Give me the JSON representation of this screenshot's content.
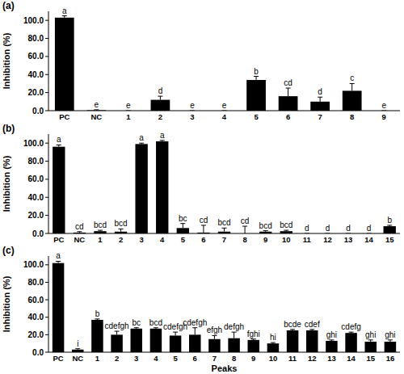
{
  "chart_data": [
    {
      "type": "bar",
      "title": "(a)",
      "y_label": "Inhibition (%)",
      "color": "#000000",
      "grid": false,
      "categories": [
        "PC",
        "NC",
        "1",
        "2",
        "3",
        "4",
        "5",
        "6",
        "7",
        "8",
        "9"
      ],
      "values": [
        103,
        0.5,
        0,
        12,
        0,
        0,
        34,
        16,
        10,
        22,
        0
      ],
      "errors": [
        2,
        0.5,
        0,
        4,
        0,
        0,
        4,
        9,
        5,
        8,
        0
      ],
      "annotations": [
        "a",
        "e",
        "e",
        "d",
        "e",
        "e",
        "b",
        "cd",
        "d",
        "c",
        "e"
      ],
      "ylim": [
        0,
        110
      ],
      "yticks": [
        {
          "value": 0,
          "label": "0.0"
        },
        {
          "value": 20,
          "label": "20.0"
        },
        {
          "value": 40,
          "label": "40.0"
        },
        {
          "value": 60,
          "label": "60.0"
        },
        {
          "value": 80,
          "label": "80.0"
        },
        {
          "value": 100,
          "label": "100.0"
        }
      ]
    },
    {
      "type": "bar",
      "title": "(b)",
      "y_label": "Inhibition (%)",
      "color": "#000000",
      "grid": false,
      "categories": [
        "PC",
        "NC",
        "1",
        "2",
        "3",
        "4",
        "5",
        "6",
        "7",
        "8",
        "9",
        "10",
        "11",
        "12",
        "13",
        "14",
        "15"
      ],
      "values": [
        96,
        1,
        2.5,
        2,
        99,
        102,
        6,
        1,
        2,
        0,
        2,
        2.5,
        0,
        0,
        0,
        0,
        8
      ],
      "errors": [
        2,
        1,
        1,
        3,
        1,
        1,
        5,
        8,
        4,
        8,
        1,
        1,
        0,
        0,
        0,
        0,
        1
      ],
      "annotations": [
        "a",
        "cd",
        "bcd",
        "bcd",
        "a",
        "a",
        "bc",
        "cd",
        "bcd",
        "cd",
        "bcd",
        "bcd",
        "d",
        "d",
        "d",
        "d",
        "b"
      ],
      "ylim": [
        0,
        110
      ],
      "yticks": [
        {
          "value": 0,
          "label": "0.0"
        },
        {
          "value": 20,
          "label": "20.0"
        },
        {
          "value": 40,
          "label": "40.0"
        },
        {
          "value": 60,
          "label": "60.0"
        },
        {
          "value": 80,
          "label": "80.0"
        },
        {
          "value": 100,
          "label": "100.0"
        }
      ]
    },
    {
      "type": "bar",
      "title": "(c)",
      "y_label": "Inhibition (%)",
      "x_label": "Peaks",
      "color": "#000000",
      "grid": false,
      "categories": [
        "PC",
        "NC",
        "1",
        "2",
        "3",
        "4",
        "5",
        "6",
        "7",
        "8",
        "9",
        "10",
        "11",
        "12",
        "13",
        "14",
        "15",
        "16"
      ],
      "values": [
        102,
        3,
        37,
        20,
        27,
        27,
        19,
        20,
        15,
        16,
        14,
        10,
        25,
        25,
        13,
        22,
        12,
        12
      ],
      "errors": [
        2,
        1,
        1,
        4,
        1,
        1,
        4,
        8,
        4,
        7,
        1,
        1,
        1,
        1,
        1,
        1,
        2,
        2
      ],
      "annotations": [
        "a",
        "i",
        "b",
        "cdefgh",
        "bc",
        "bcd",
        "cdefgh",
        "cdefgh",
        "efgh",
        "defgh",
        "fghi",
        "hi",
        "bcde",
        "cdef",
        "ghi",
        "cdefg",
        "ghi",
        "ghi"
      ],
      "ylim": [
        0,
        110
      ],
      "yticks": [
        {
          "value": 0,
          "label": "0.0"
        },
        {
          "value": 20,
          "label": "20.0"
        },
        {
          "value": 40,
          "label": "40.0"
        },
        {
          "value": 60,
          "label": "60.0"
        },
        {
          "value": 80,
          "label": "80.0"
        },
        {
          "value": 100,
          "label": "100.0"
        }
      ]
    }
  ]
}
